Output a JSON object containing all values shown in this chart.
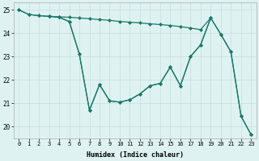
{
  "bg_color": "#dff2f2",
  "grid_major_color": "#c4dede",
  "grid_minor_color": "#d4eaea",
  "line_color": "#1a7868",
  "xlabel": "Humidex (Indice chaleur)",
  "xlim": [
    -0.5,
    23.5
  ],
  "ylim": [
    19.5,
    25.3
  ],
  "yticks": [
    20,
    21,
    22,
    23,
    24,
    25
  ],
  "xticks": [
    0,
    1,
    2,
    3,
    4,
    5,
    6,
    7,
    8,
    9,
    10,
    11,
    12,
    13,
    14,
    15,
    16,
    17,
    18,
    19,
    20,
    21,
    22,
    23
  ],
  "line1_x": [
    0,
    1,
    2,
    3,
    4,
    5,
    6,
    7,
    8,
    9,
    10,
    11,
    12,
    13,
    14,
    15,
    16,
    17,
    18,
    19
  ],
  "line1_y": [
    25.0,
    24.8,
    24.75,
    24.72,
    24.7,
    24.68,
    24.65,
    24.62,
    24.58,
    24.55,
    24.5,
    24.47,
    24.44,
    24.4,
    24.37,
    24.33,
    24.28,
    24.22,
    24.15,
    24.65
  ],
  "line2_x": [
    3,
    4,
    5,
    6,
    7,
    8,
    9,
    10,
    11,
    12,
    13,
    14,
    15,
    16,
    17,
    18,
    19,
    20,
    21,
    22,
    23
  ],
  "line2_y": [
    24.72,
    24.68,
    24.5,
    23.1,
    20.7,
    21.8,
    21.1,
    21.05,
    21.15,
    21.4,
    21.75,
    21.85,
    22.55,
    21.75,
    23.0,
    23.5,
    24.65,
    23.95,
    23.2,
    20.45,
    19.65
  ],
  "line3_x": [
    0,
    1,
    2,
    3,
    4,
    5,
    6,
    7,
    8,
    9,
    10,
    11,
    12,
    13,
    14,
    15,
    16,
    17,
    18,
    19,
    20,
    21,
    22,
    23
  ],
  "line3_y": [
    25.0,
    24.8,
    24.75,
    24.72,
    24.68,
    24.5,
    23.1,
    20.7,
    21.8,
    21.1,
    21.05,
    21.15,
    21.4,
    21.75,
    21.85,
    22.55,
    21.75,
    23.0,
    23.5,
    24.65,
    23.95,
    23.2,
    20.45,
    19.65
  ]
}
